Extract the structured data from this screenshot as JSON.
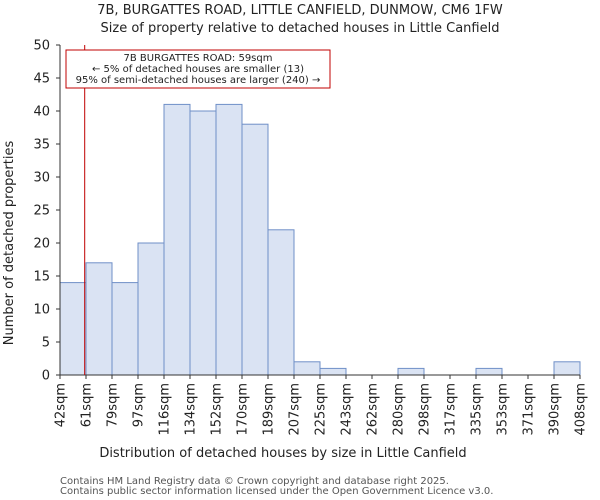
{
  "chart_data": {
    "type": "bar",
    "title": "7B, BURGATTES ROAD, LITTLE CANFIELD, DUNMOW, CM6 1FW",
    "subtitle": "Size of property relative to detached houses in Little Canfield",
    "xlabel": "Distribution of detached houses by size in Little Canfield",
    "ylabel": "Number of detached properties",
    "bin_edges_labels": [
      "42sqm",
      "61sqm",
      "79sqm",
      "97sqm",
      "116sqm",
      "134sqm",
      "152sqm",
      "170sqm",
      "189sqm",
      "207sqm",
      "225sqm",
      "243sqm",
      "262sqm",
      "280sqm",
      "298sqm",
      "317sqm",
      "335sqm",
      "353sqm",
      "371sqm",
      "390sqm",
      "408sqm"
    ],
    "values": [
      14,
      17,
      14,
      20,
      41,
      40,
      41,
      38,
      22,
      2,
      1,
      0,
      0,
      1,
      0,
      0,
      1,
      0,
      0,
      2
    ],
    "ylim": [
      0,
      50
    ],
    "yticks": [
      0,
      5,
      10,
      15,
      20,
      25,
      30,
      35,
      40,
      45,
      50
    ],
    "ytick_labels": [
      "0",
      "5",
      "10",
      "15",
      "20",
      "25",
      "30",
      "35",
      "40",
      "45",
      "50"
    ],
    "grid": false,
    "marker": {
      "bin_index_position": 0.95,
      "annotation_lines": [
        "7B BURGATTES ROAD: 59sqm",
        "← 5% of detached houses are smaller (13)",
        "95% of semi-detached houses are larger (240) →"
      ]
    },
    "colors": {
      "bar_fill": "#dae3f3",
      "bar_edge": "#6f8fc7",
      "marker_line": "#c00000",
      "annotation_border": "#c00000",
      "axis": "#333333"
    }
  },
  "footer": {
    "line1": "Contains HM Land Registry data © Crown copyright and database right 2025.",
    "line2": "Contains public sector information licensed under the Open Government Licence v3.0."
  }
}
